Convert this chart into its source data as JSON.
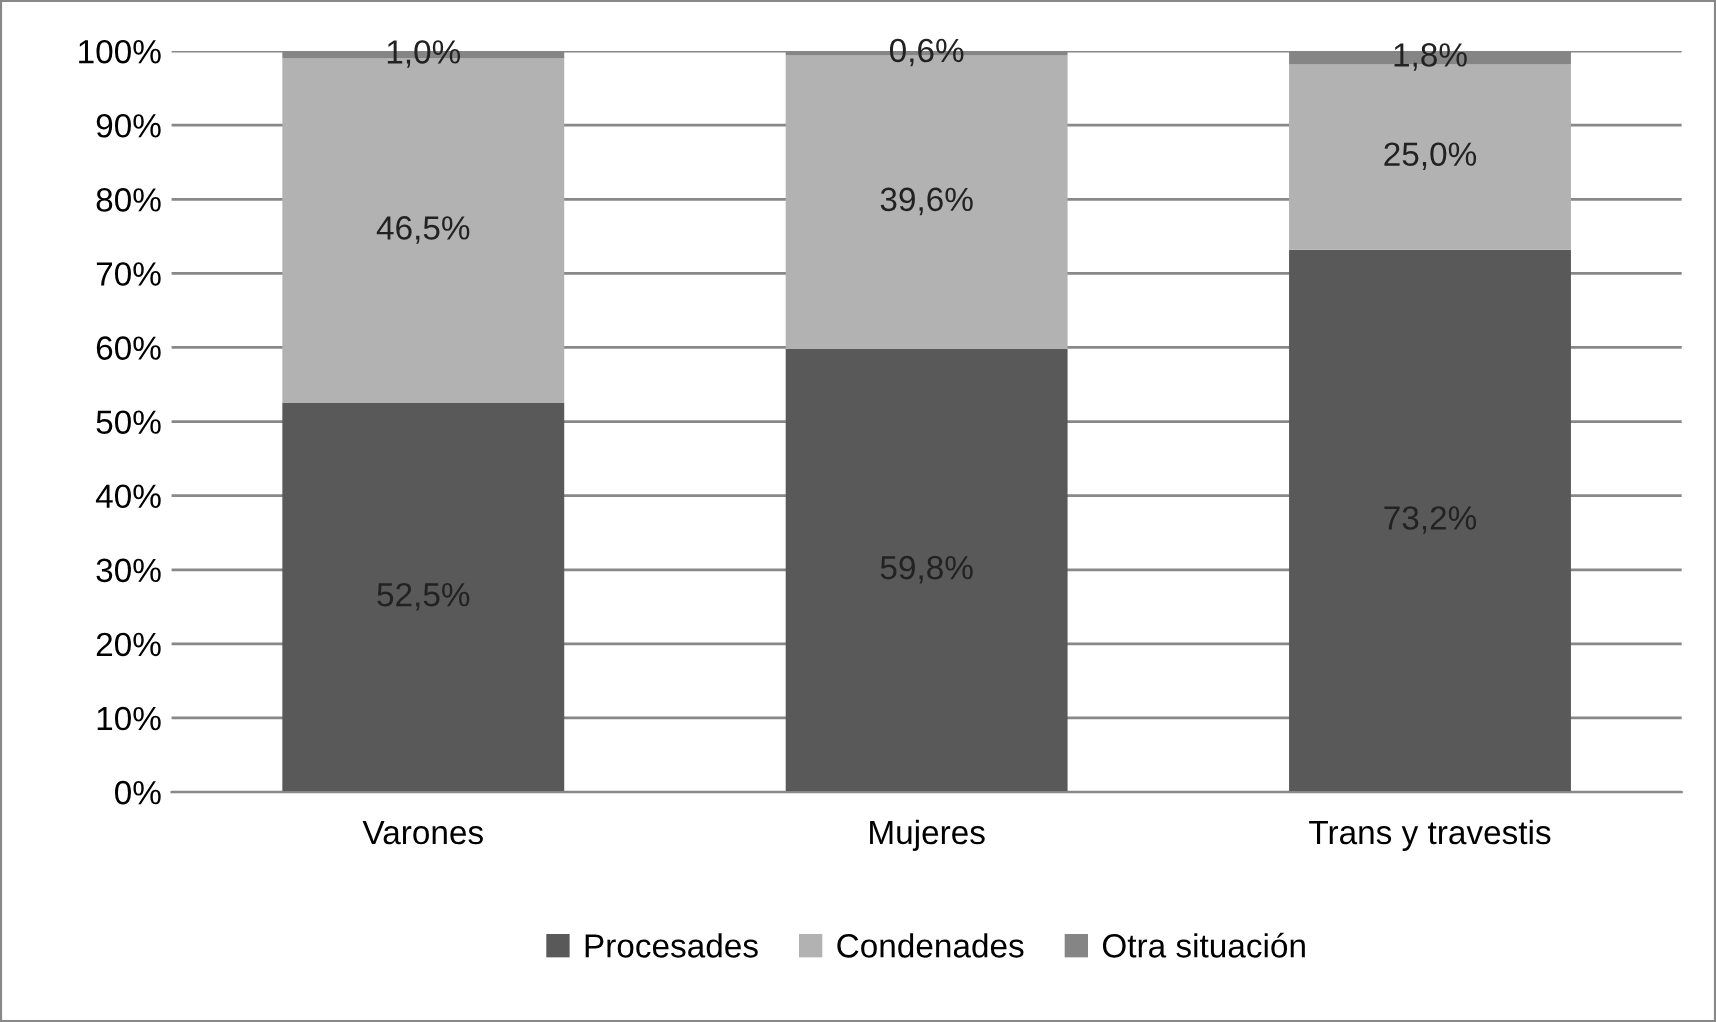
{
  "chart_data": {
    "type": "bar",
    "stacked": true,
    "categories": [
      "Varones",
      "Mujeres",
      "Trans y travestis"
    ],
    "series": [
      {
        "name": "Procesades",
        "color": "#595959",
        "values": [
          52.5,
          59.8,
          73.2
        ],
        "value_labels": [
          "52,5%",
          "59,8%",
          "73,2%"
        ]
      },
      {
        "name": "Condenades",
        "color": "#b2b2b2",
        "values": [
          46.5,
          39.6,
          25.0
        ],
        "value_labels": [
          "46,5%",
          "39,6%",
          "25,0%"
        ]
      },
      {
        "name": "Otra situación",
        "color": "#858585",
        "values": [
          1.0,
          0.6,
          1.8
        ],
        "value_labels": [
          "1,0%",
          "0,6%",
          "1,8%"
        ]
      }
    ],
    "ylim": [
      0,
      100
    ],
    "yticks": [
      {
        "value": 0,
        "label": "0%"
      },
      {
        "value": 10,
        "label": "10%"
      },
      {
        "value": 20,
        "label": "20%"
      },
      {
        "value": 30,
        "label": "30%"
      },
      {
        "value": 40,
        "label": "40%"
      },
      {
        "value": 50,
        "label": "50%"
      },
      {
        "value": 60,
        "label": "60%"
      },
      {
        "value": 70,
        "label": "70%"
      },
      {
        "value": 80,
        "label": "80%"
      },
      {
        "value": 90,
        "label": "90%"
      },
      {
        "value": 100,
        "label": "100%"
      }
    ],
    "grid": "y",
    "legend": "bottom"
  }
}
